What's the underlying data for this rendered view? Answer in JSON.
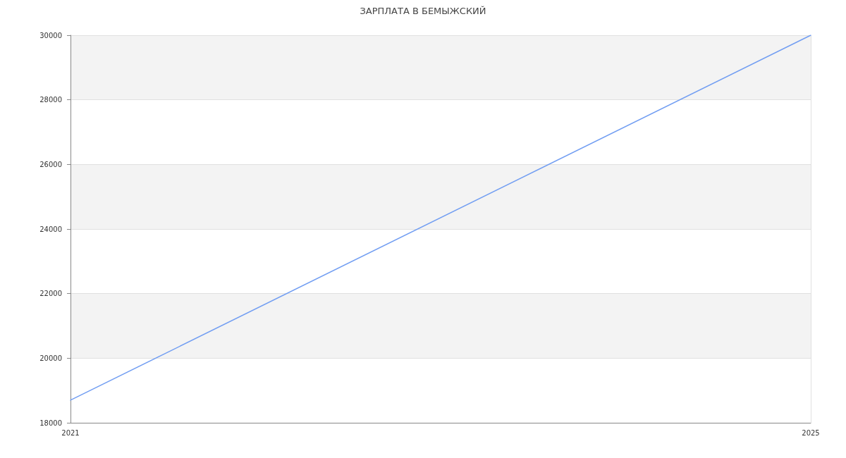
{
  "chart_data": {
    "type": "line",
    "title": "ЗАРПЛАТА В БЕМЫЖСКИЙ",
    "x": [
      2021,
      2025
    ],
    "series": [
      {
        "color": "#729ef2",
        "values": [
          18700,
          30000
        ]
      }
    ],
    "xlim": [
      2021,
      2025
    ],
    "xticks": [
      2021,
      2025
    ],
    "ylim": [
      18000,
      30000
    ],
    "yticks": [
      18000,
      20000,
      22000,
      24000,
      26000,
      28000,
      30000
    ],
    "grid": true,
    "marker": "none",
    "line_style": "solid"
  }
}
